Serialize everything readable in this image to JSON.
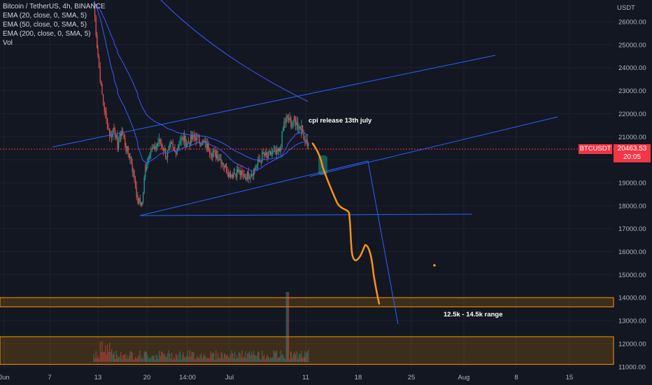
{
  "legend": {
    "title": "Bitcoin / TetherUS, 4h, BINANCE",
    "ema20": "EMA (20, close, 0, SMA, 5)",
    "ema50": "EMA (50, close, 0, SMA, 5)",
    "ema200": "EMA (200, close, 0, SMA, 5)",
    "vol": "Vol"
  },
  "axis": {
    "currency": "USDT",
    "symbol": "BTCUSDT",
    "last_price": "20463.53",
    "countdown": "20:05"
  },
  "annotations": {
    "cpi": "cpi release 13th july",
    "range": "12.5k - 14.5k range"
  },
  "colors": {
    "background": "#131722",
    "up": "#26a69a",
    "down": "#ef5350",
    "trendline": "#2962ff",
    "projection": "#f7931a",
    "zone_border": "#ff9800",
    "price_tag": "#f23645"
  },
  "chart_data": {
    "type": "candlestick",
    "y_ticks": [
      "26000.00",
      "25000.00",
      "24000.00",
      "23000.00",
      "22000.00",
      "21000.00",
      "20000.00",
      "19000.00",
      "18000.00",
      "17000.00",
      "16000.00",
      "15000.00",
      "14000.00",
      "13000.00",
      "12000.00",
      "11000.00"
    ],
    "x_ticks": [
      "Jun",
      "7",
      "13",
      "20",
      "14:00",
      "Jul",
      "11",
      "18",
      "25",
      "Aug",
      "8",
      "15"
    ],
    "ylim": [
      10900,
      26900
    ],
    "approx_close_path": [
      [
        134,
        26800
      ],
      [
        140,
        24500
      ],
      [
        146,
        22800
      ],
      [
        152,
        21700
      ],
      [
        158,
        21000
      ],
      [
        163,
        21400
      ],
      [
        168,
        20600
      ],
      [
        174,
        21300
      ],
      [
        180,
        20500
      ],
      [
        186,
        20100
      ],
      [
        192,
        19200
      ],
      [
        197,
        18200
      ],
      [
        203,
        18100
      ],
      [
        208,
        19700
      ],
      [
        214,
        20400
      ],
      [
        220,
        20400
      ],
      [
        226,
        20800
      ],
      [
        232,
        20600
      ],
      [
        238,
        20200
      ],
      [
        244,
        20600
      ],
      [
        250,
        20300
      ],
      [
        256,
        20800
      ],
      [
        262,
        20900
      ],
      [
        268,
        20700
      ],
      [
        274,
        20900
      ],
      [
        280,
        21000
      ],
      [
        286,
        20800
      ],
      [
        292,
        20700
      ],
      [
        298,
        20500
      ],
      [
        304,
        20300
      ],
      [
        310,
        20200
      ],
      [
        316,
        20000
      ],
      [
        322,
        19700
      ],
      [
        328,
        19400
      ],
      [
        334,
        19400
      ],
      [
        340,
        19500
      ],
      [
        346,
        19300
      ],
      [
        352,
        19300
      ],
      [
        358,
        19400
      ],
      [
        364,
        19600
      ],
      [
        370,
        19900
      ],
      [
        376,
        20200
      ],
      [
        382,
        20100
      ],
      [
        388,
        20300
      ],
      [
        394,
        20200
      ],
      [
        400,
        20400
      ],
      [
        406,
        21600
      ],
      [
        411,
        21800
      ],
      [
        416,
        21600
      ],
      [
        421,
        21700
      ],
      [
        426,
        21500
      ],
      [
        431,
        21300
      ],
      [
        436,
        20900
      ],
      [
        441,
        20600
      ]
    ]
  }
}
